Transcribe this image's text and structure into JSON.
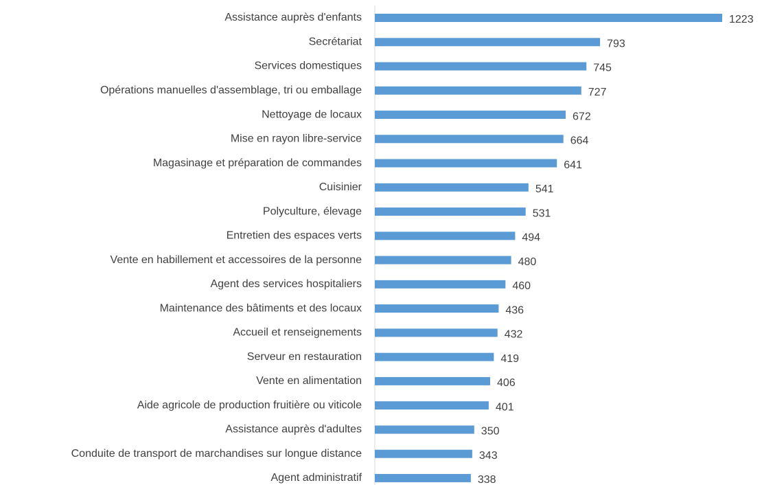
{
  "chart_data": {
    "type": "bar",
    "orientation": "horizontal",
    "color": "#5b9bd5",
    "categories": [
      "Assistance auprès d'enfants",
      "Secrétariat",
      "Services domestiques",
      "Opérations manuelles d'assemblage, tri ou emballage",
      "Nettoyage de locaux",
      "Mise en rayon libre-service",
      "Magasinage et préparation de commandes",
      "Cuisinier",
      "Polyculture, élevage",
      "Entretien des espaces verts",
      "Vente en habillement et accessoires de la personne",
      "Agent des services hospitaliers",
      "Maintenance des bâtiments et des locaux",
      "Accueil et renseignements",
      "Serveur en restauration",
      "Vente en alimentation",
      "Aide agricole de production fruitière ou viticole",
      "Assistance auprès d'adultes",
      "Conduite de transport de marchandises sur longue distance",
      "Agent administratif"
    ],
    "values": [
      1223,
      793,
      745,
      727,
      672,
      664,
      641,
      541,
      531,
      494,
      480,
      460,
      436,
      432,
      419,
      406,
      401,
      350,
      343,
      338
    ]
  }
}
